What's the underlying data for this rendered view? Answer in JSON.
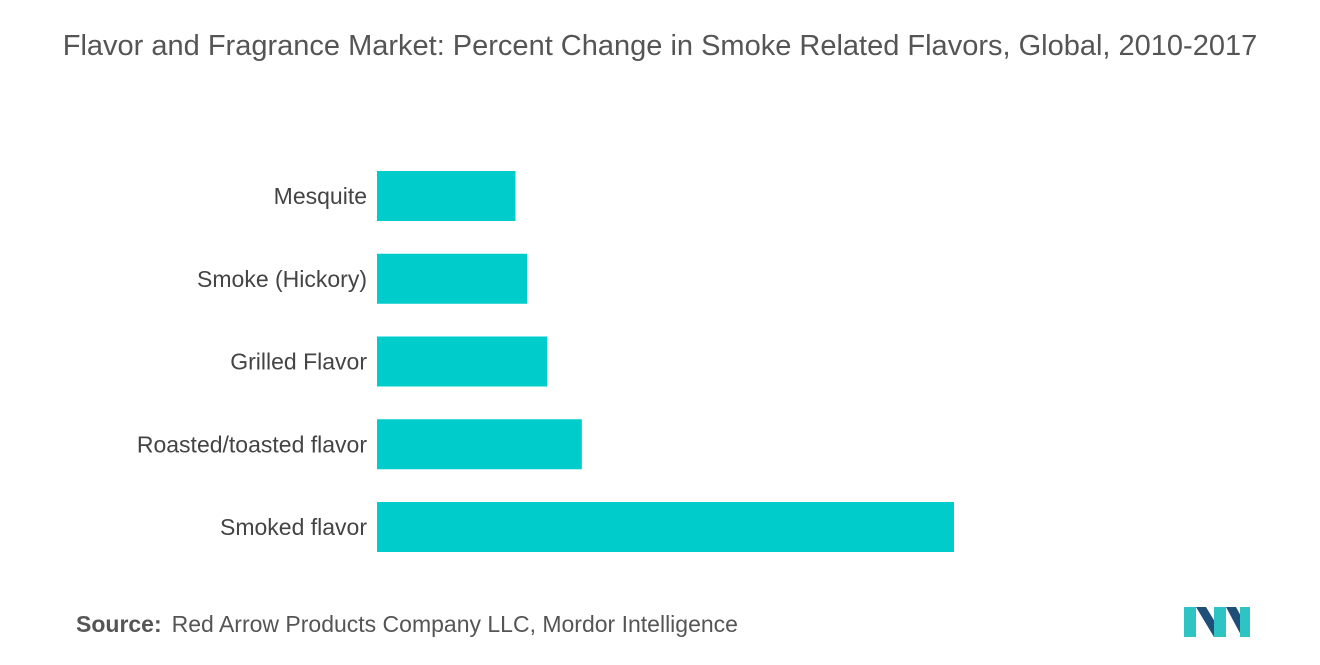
{
  "chart_data": {
    "type": "bar",
    "orientation": "horizontal",
    "title": "Flavor and Fragrance Market: Percent Change in Smoke Related Flavors, Global, 2010-2017",
    "categories": [
      "Mesquite",
      "Smoke (Hickory)",
      "Grilled Flavor",
      "Roasted/toasted flavor",
      "Smoked flavor"
    ],
    "values": [
      24,
      26,
      29.5,
      35.5,
      100
    ],
    "xlim": [
      0,
      100
    ],
    "grid": false,
    "legend": "none",
    "bar_color": "#00CCCC"
  },
  "source": {
    "label": "Source:",
    "text": "Red Arrow Products Company LLC, Mordor Intelligence"
  },
  "logo": {
    "icon": "mordor-intelligence-logo",
    "colors": [
      "#1F4E79",
      "#2EC4C4"
    ]
  }
}
